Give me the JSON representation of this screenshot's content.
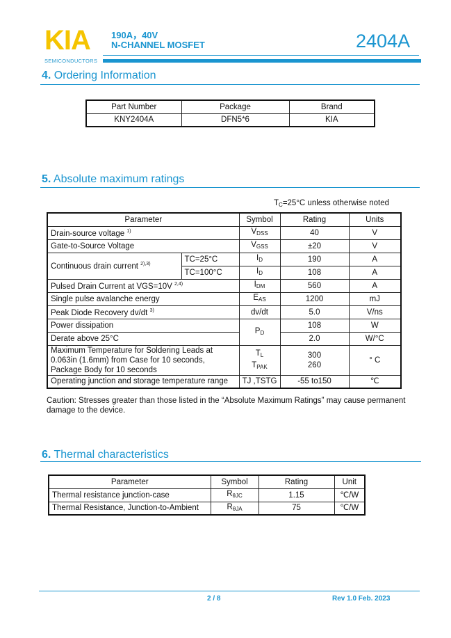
{
  "header": {
    "logo": "KIA",
    "logo_sub": "SEMICONDUCTORS",
    "line1": "190A，40V",
    "line2": "N-CHANNEL MOSFET",
    "part": "2404A",
    "brand_color": "#1a95d0",
    "logo_color": "#f5c400"
  },
  "sec4": {
    "num": "4.",
    "title": "Ordering Information",
    "headers": [
      "Part Number",
      "Package",
      "Brand"
    ],
    "row": [
      "KNY2404A",
      "DFN5*6",
      "KIA"
    ]
  },
  "sec5": {
    "num": "5.",
    "title": "Absolute maximum ratings",
    "condition": "TC=25°C unless otherwise noted",
    "condition_main": "T",
    "condition_sub": "C",
    "condition_rest": "=25°C unless otherwise noted",
    "headers": [
      "Parameter",
      "Symbol",
      "Rating",
      "Units"
    ],
    "rows": [
      {
        "param": "Drain-source voltage",
        "sup": "1)",
        "sym": "V",
        "sub": "DSS",
        "rating": "40",
        "unit": "V"
      },
      {
        "param": "Gate-to-Source Voltage",
        "sym": "V",
        "sub": "GSS",
        "rating": "±20",
        "unit": "V"
      },
      {
        "param": "Continuous drain current",
        "sup": "2),3)",
        "cond": "TC=25°C",
        "sym": "I",
        "sub": "D",
        "rating": "190",
        "unit": "A"
      },
      {
        "cond": "TC=100°C",
        "sym": "I",
        "sub": "D",
        "rating": "108",
        "unit": "A"
      },
      {
        "param": "Pulsed Drain Current at VGS=10V",
        "sup": "2,4)",
        "sym": "I",
        "sub": "DM",
        "rating": "560",
        "unit": "A"
      },
      {
        "param": "Single pulse avalanche energy",
        "sym": "E",
        "sub": "AS",
        "rating": "1200",
        "unit": "mJ"
      },
      {
        "param": "Peak Diode Recovery dv/dt",
        "sup": "3)",
        "sym": "dv/dt",
        "rating": "5.0",
        "unit": "V/ns"
      },
      {
        "param": "Power dissipation",
        "sym": "P",
        "sub": "D",
        "rating": "108",
        "unit": "W"
      },
      {
        "param": "Derate above 25°C",
        "rating": "2.0",
        "unit": "W/°C"
      },
      {
        "param": "Maximum Temperature for Soldering Leads at 0.063in (1.6mm) from Case for 10 seconds, Package Body for 10 seconds",
        "sym": "T",
        "sub": "L",
        "sym2": "T",
        "sub2": "PAK",
        "rating": "300",
        "rating2": "260",
        "unit": "° C"
      },
      {
        "param": "Operating junction and storage temperature range",
        "sym": "TJ ,TSTG",
        "rating": "-55 to150",
        "unit": "℃"
      }
    ],
    "caution": "Caution: Stresses greater than those listed in the “Absolute Maximum Ratings” may cause permanent damage to the device."
  },
  "sec6": {
    "num": "6.",
    "title": "Thermal characteristics",
    "headers": [
      "Parameter",
      "Symbol",
      "Rating",
      "Unit"
    ],
    "rows": [
      {
        "param": "Thermal resistance junction-case",
        "sym": "R",
        "sub": "θJC",
        "rating": "1.15",
        "unit": "℃/W"
      },
      {
        "param": "Thermal Resistance, Junction-to-Ambient",
        "sym": "R",
        "sub": "θJA",
        "rating": "75",
        "unit": "℃/W"
      }
    ]
  },
  "footer": {
    "page": "2 / 8",
    "rev": "Rev 1.0 Feb. 2023"
  }
}
